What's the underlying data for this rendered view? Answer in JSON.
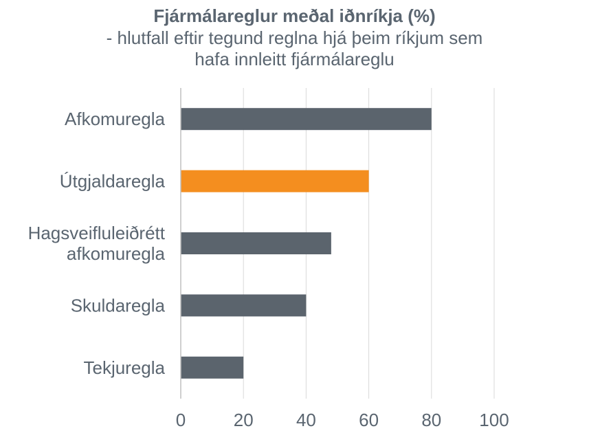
{
  "chart_data": {
    "type": "bar",
    "orientation": "horizontal",
    "title": "Fjármálareglur meðal iðnríkja (%)",
    "subtitle_lines": [
      "- hlutfall eftir tegund reglna hjá þeim ríkjum sem",
      "hafa innleitt fjármálareglu"
    ],
    "categories": [
      [
        "Afkomuregla"
      ],
      [
        "Útgjaldaregla"
      ],
      [
        "Hagsveifluleiðrétt",
        "afkomuregla"
      ],
      [
        "Skuldaregla"
      ],
      [
        "Tekjuregla"
      ]
    ],
    "values": [
      80,
      60,
      48,
      40,
      20
    ],
    "colors": [
      "#5b646d",
      "#f48e1f",
      "#5b646d",
      "#5b646d",
      "#5b646d"
    ],
    "xlim": [
      0,
      100
    ],
    "xticks": [
      0,
      20,
      40,
      60,
      80,
      100
    ],
    "grid": "vertical",
    "xlabel": "",
    "ylabel": ""
  }
}
